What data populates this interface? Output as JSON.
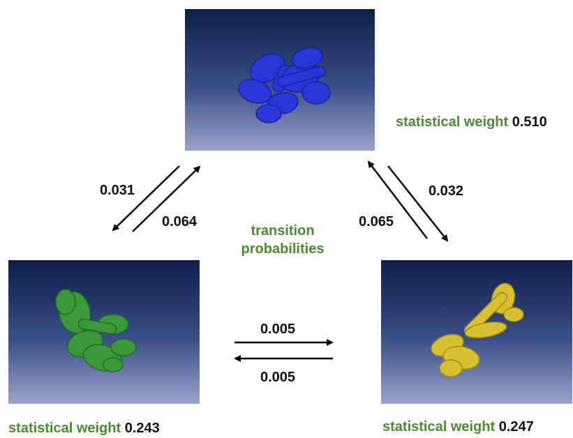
{
  "states": {
    "blue": {
      "weight_label": "statistical weight",
      "weight": "0.510",
      "color": "#2233cc"
    },
    "green": {
      "weight_label": "statistical weight",
      "weight": "0.243",
      "color": "#3a9a3a"
    },
    "yellow": {
      "weight_label": "statistical weight",
      "weight": "0.247",
      "color": "#d8c030"
    }
  },
  "center_label": {
    "line1": "transition",
    "line2": "probabilities"
  },
  "transitions": {
    "blue_to_green": "0.031",
    "green_to_blue": "0.064",
    "yellow_to_blue": "0.065",
    "blue_to_yellow": "0.032",
    "green_to_yellow": "0.005",
    "yellow_to_green": "0.005"
  },
  "accent_color": "#4b8b2f"
}
